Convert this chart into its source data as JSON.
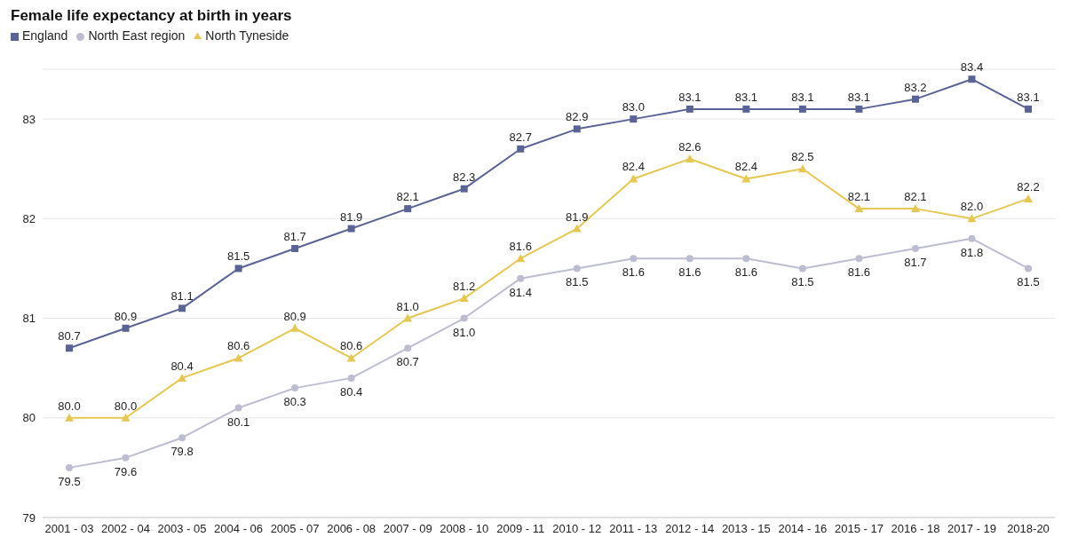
{
  "chart_data": {
    "type": "line",
    "title": "Female life expectancy at birth in years",
    "categories": [
      "2001 - 03",
      "2002 - 04",
      "2003 - 05",
      "2004 - 06",
      "2005 - 07",
      "2006 - 08",
      "2007 - 09",
      "2008 - 10",
      "2009 - 11",
      "2010 - 12",
      "2011 - 13",
      "2012 - 14",
      "2013 - 15",
      "2014 - 16",
      "2015 - 17",
      "2016 - 18",
      "2017 - 19",
      "2018-20"
    ],
    "series": [
      {
        "name": "England",
        "color": "#5a6396",
        "marker": "square",
        "values": [
          80.7,
          80.9,
          81.1,
          81.5,
          81.7,
          81.9,
          82.1,
          82.3,
          82.7,
          82.9,
          83.0,
          83.1,
          83.1,
          83.1,
          83.1,
          83.2,
          83.4,
          83.1
        ],
        "value_labels": [
          "80.7",
          "80.9",
          "81.1",
          "81.5",
          "81.7",
          "81.9",
          "82.1",
          "82.3",
          "82.7",
          "82.9",
          "83.0",
          "83.1",
          "83.1",
          "83.1",
          "83.1",
          "83.2",
          "83.4",
          "83.1"
        ]
      },
      {
        "name": "North East region",
        "color": "#bdbdd1",
        "marker": "circle",
        "values": [
          79.5,
          79.6,
          79.8,
          80.1,
          80.3,
          80.4,
          80.7,
          81.0,
          81.4,
          81.5,
          81.6,
          81.6,
          81.6,
          81.5,
          81.6,
          81.7,
          81.8,
          81.5
        ],
        "value_labels": [
          "79.5",
          "79.6",
          "79.8",
          "80.1",
          "80.3",
          "80.4",
          "80.7",
          "81.0",
          "81.4",
          "81.5",
          "81.6",
          "81.6",
          "81.6",
          "81.5",
          "81.6",
          "81.7",
          "81.8",
          "81.5"
        ]
      },
      {
        "name": "North Tyneside",
        "color": "#e6c752",
        "marker": "triangle",
        "values": [
          80.0,
          80.0,
          80.4,
          80.6,
          80.9,
          80.6,
          81.0,
          81.2,
          81.6,
          81.9,
          82.4,
          82.6,
          82.4,
          82.5,
          82.1,
          82.1,
          82.0,
          82.2
        ],
        "value_labels": [
          "80.0",
          "80.0",
          "80.4",
          "80.6",
          "80.9",
          "80.6",
          "81.0",
          "81.2",
          "81.6",
          "81.9",
          "82.4",
          "82.6",
          "82.4",
          "82.5",
          "82.1",
          "82.1",
          "82.0",
          "82.2"
        ]
      }
    ],
    "ylim": [
      79,
      83.5
    ],
    "yticks": [
      79,
      80,
      81,
      82,
      83
    ],
    "grid": "y",
    "legend": "top left",
    "line_style": "solid"
  }
}
